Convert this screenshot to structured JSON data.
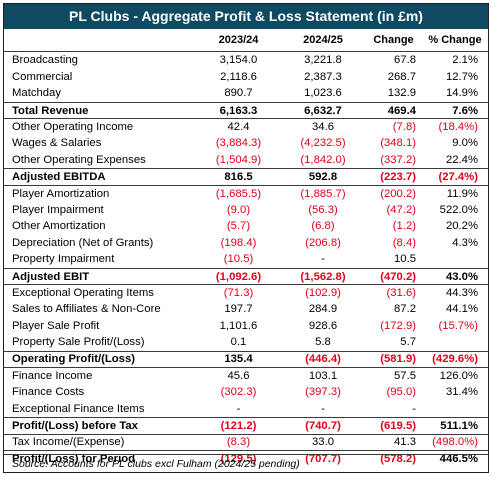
{
  "title": "PL Clubs - Aggregate Profit & Loss Statement (in £m)",
  "headers": {
    "label": "",
    "y1": "2023/24",
    "y2": "2024/25",
    "change": "Change",
    "pct": "% Change"
  },
  "rows": [
    {
      "label": "Broadcasting",
      "y1": "3,154.0",
      "y2": "3,221.8",
      "change": "67.8",
      "pct": "2.1%",
      "bold": false,
      "top": false
    },
    {
      "label": "Commercial",
      "y1": "2,118.6",
      "y2": "2,387.3",
      "change": "268.7",
      "pct": "12.7%",
      "bold": false,
      "top": false
    },
    {
      "label": "Matchday",
      "y1": "890.7",
      "y2": "1,023.6",
      "change": "132.9",
      "pct": "14.9%",
      "bold": false,
      "top": false
    },
    {
      "label": "Total Revenue",
      "y1": "6,163.3",
      "y2": "6,632.7",
      "change": "469.4",
      "pct": "7.6%",
      "bold": true,
      "top": true
    },
    {
      "label": "Other Operating Income",
      "y1": "42.4",
      "y2": "34.6",
      "change": "(7.8)",
      "pct": "(18.4%)",
      "bold": false,
      "top": true
    },
    {
      "label": "Wages & Salaries",
      "y1": "(3,884.3)",
      "y2": "(4,232.5)",
      "change": "(348.1)",
      "pct": "9.0%",
      "bold": false,
      "top": false
    },
    {
      "label": "Other Operating Expenses",
      "y1": "(1,504.9)",
      "y2": "(1,842.0)",
      "change": "(337.2)",
      "pct": "22.4%",
      "bold": false,
      "top": false
    },
    {
      "label": "Adjusted EBITDA",
      "y1": "816.5",
      "y2": "592.8",
      "change": "(223.7)",
      "pct": "(27.4%)",
      "bold": true,
      "top": true
    },
    {
      "label": "Player Amortization",
      "y1": "(1,685.5)",
      "y2": "(1,885.7)",
      "change": "(200.2)",
      "pct": "11.9%",
      "bold": false,
      "top": true
    },
    {
      "label": "Player Impairment",
      "y1": "(9.0)",
      "y2": "(56.3)",
      "change": "(47.2)",
      "pct": "522.0%",
      "bold": false,
      "top": false
    },
    {
      "label": "Other Amortization",
      "y1": "(5.7)",
      "y2": "(6.8)",
      "change": "(1.2)",
      "pct": "20.2%",
      "bold": false,
      "top": false
    },
    {
      "label": "Depreciation (Net of Grants)",
      "y1": "(198.4)",
      "y2": "(206.8)",
      "change": "(8.4)",
      "pct": "4.3%",
      "bold": false,
      "top": false
    },
    {
      "label": "Property Impairment",
      "y1": "(10.5)",
      "y2": "-",
      "change": "10.5",
      "pct": "",
      "bold": false,
      "top": false
    },
    {
      "label": "Adjusted EBIT",
      "y1": "(1,092.6)",
      "y2": "(1,562.8)",
      "change": "(470.2)",
      "pct": "43.0%",
      "bold": true,
      "top": true
    },
    {
      "label": "Exceptional Operating Items",
      "y1": "(71.3)",
      "y2": "(102.9)",
      "change": "(31.6)",
      "pct": "44.3%",
      "bold": false,
      "top": true
    },
    {
      "label": "Sales to Affiliates & Non-Core",
      "y1": "197.7",
      "y2": "284.9",
      "change": "87.2",
      "pct": "44.1%",
      "bold": false,
      "top": false
    },
    {
      "label": "Player Sale Profit",
      "y1": "1,101.6",
      "y2": "928.6",
      "change": "(172.9)",
      "pct": "(15.7%)",
      "bold": false,
      "top": false
    },
    {
      "label": "Property Sale Profit/(Loss)",
      "y1": "0.1",
      "y2": "5.8",
      "change": "5.7",
      "pct": "",
      "bold": false,
      "top": false
    },
    {
      "label": "Operating Profit/(Loss)",
      "y1": "135.4",
      "y2": "(446.4)",
      "change": "(581.9)",
      "pct": "(429.6%)",
      "bold": true,
      "top": true
    },
    {
      "label": "Finance Income",
      "y1": "45.6",
      "y2": "103.1",
      "change": "57.5",
      "pct": "126.0%",
      "bold": false,
      "top": true
    },
    {
      "label": "Finance Costs",
      "y1": "(302.3)",
      "y2": "(397.3)",
      "change": "(95.0)",
      "pct": "31.4%",
      "bold": false,
      "top": false
    },
    {
      "label": "Exceptional Finance Items",
      "y1": "-",
      "y2": "-",
      "change": "-",
      "pct": "",
      "bold": false,
      "top": false
    },
    {
      "label": "Profit/(Loss) before Tax",
      "y1": "(121.2)",
      "y2": "(740.7)",
      "change": "(619.5)",
      "pct": "511.1%",
      "bold": true,
      "top": true
    },
    {
      "label": "Tax Income/(Expense)",
      "y1": "(8.3)",
      "y2": "33.0",
      "change": "41.3",
      "pct": "(498.0%)",
      "bold": false,
      "top": true
    },
    {
      "label": "Profit/(Loss) for Period",
      "y1": "(129.5)",
      "y2": "(707.7)",
      "change": "(578.2)",
      "pct": "446.5%",
      "bold": true,
      "top": true
    }
  ],
  "source": "Source: Accounts for PL clubs excl Fulham (2024/25 pending)",
  "colors": {
    "title_bg": "#0e4b63",
    "negative": "#e0001b"
  }
}
